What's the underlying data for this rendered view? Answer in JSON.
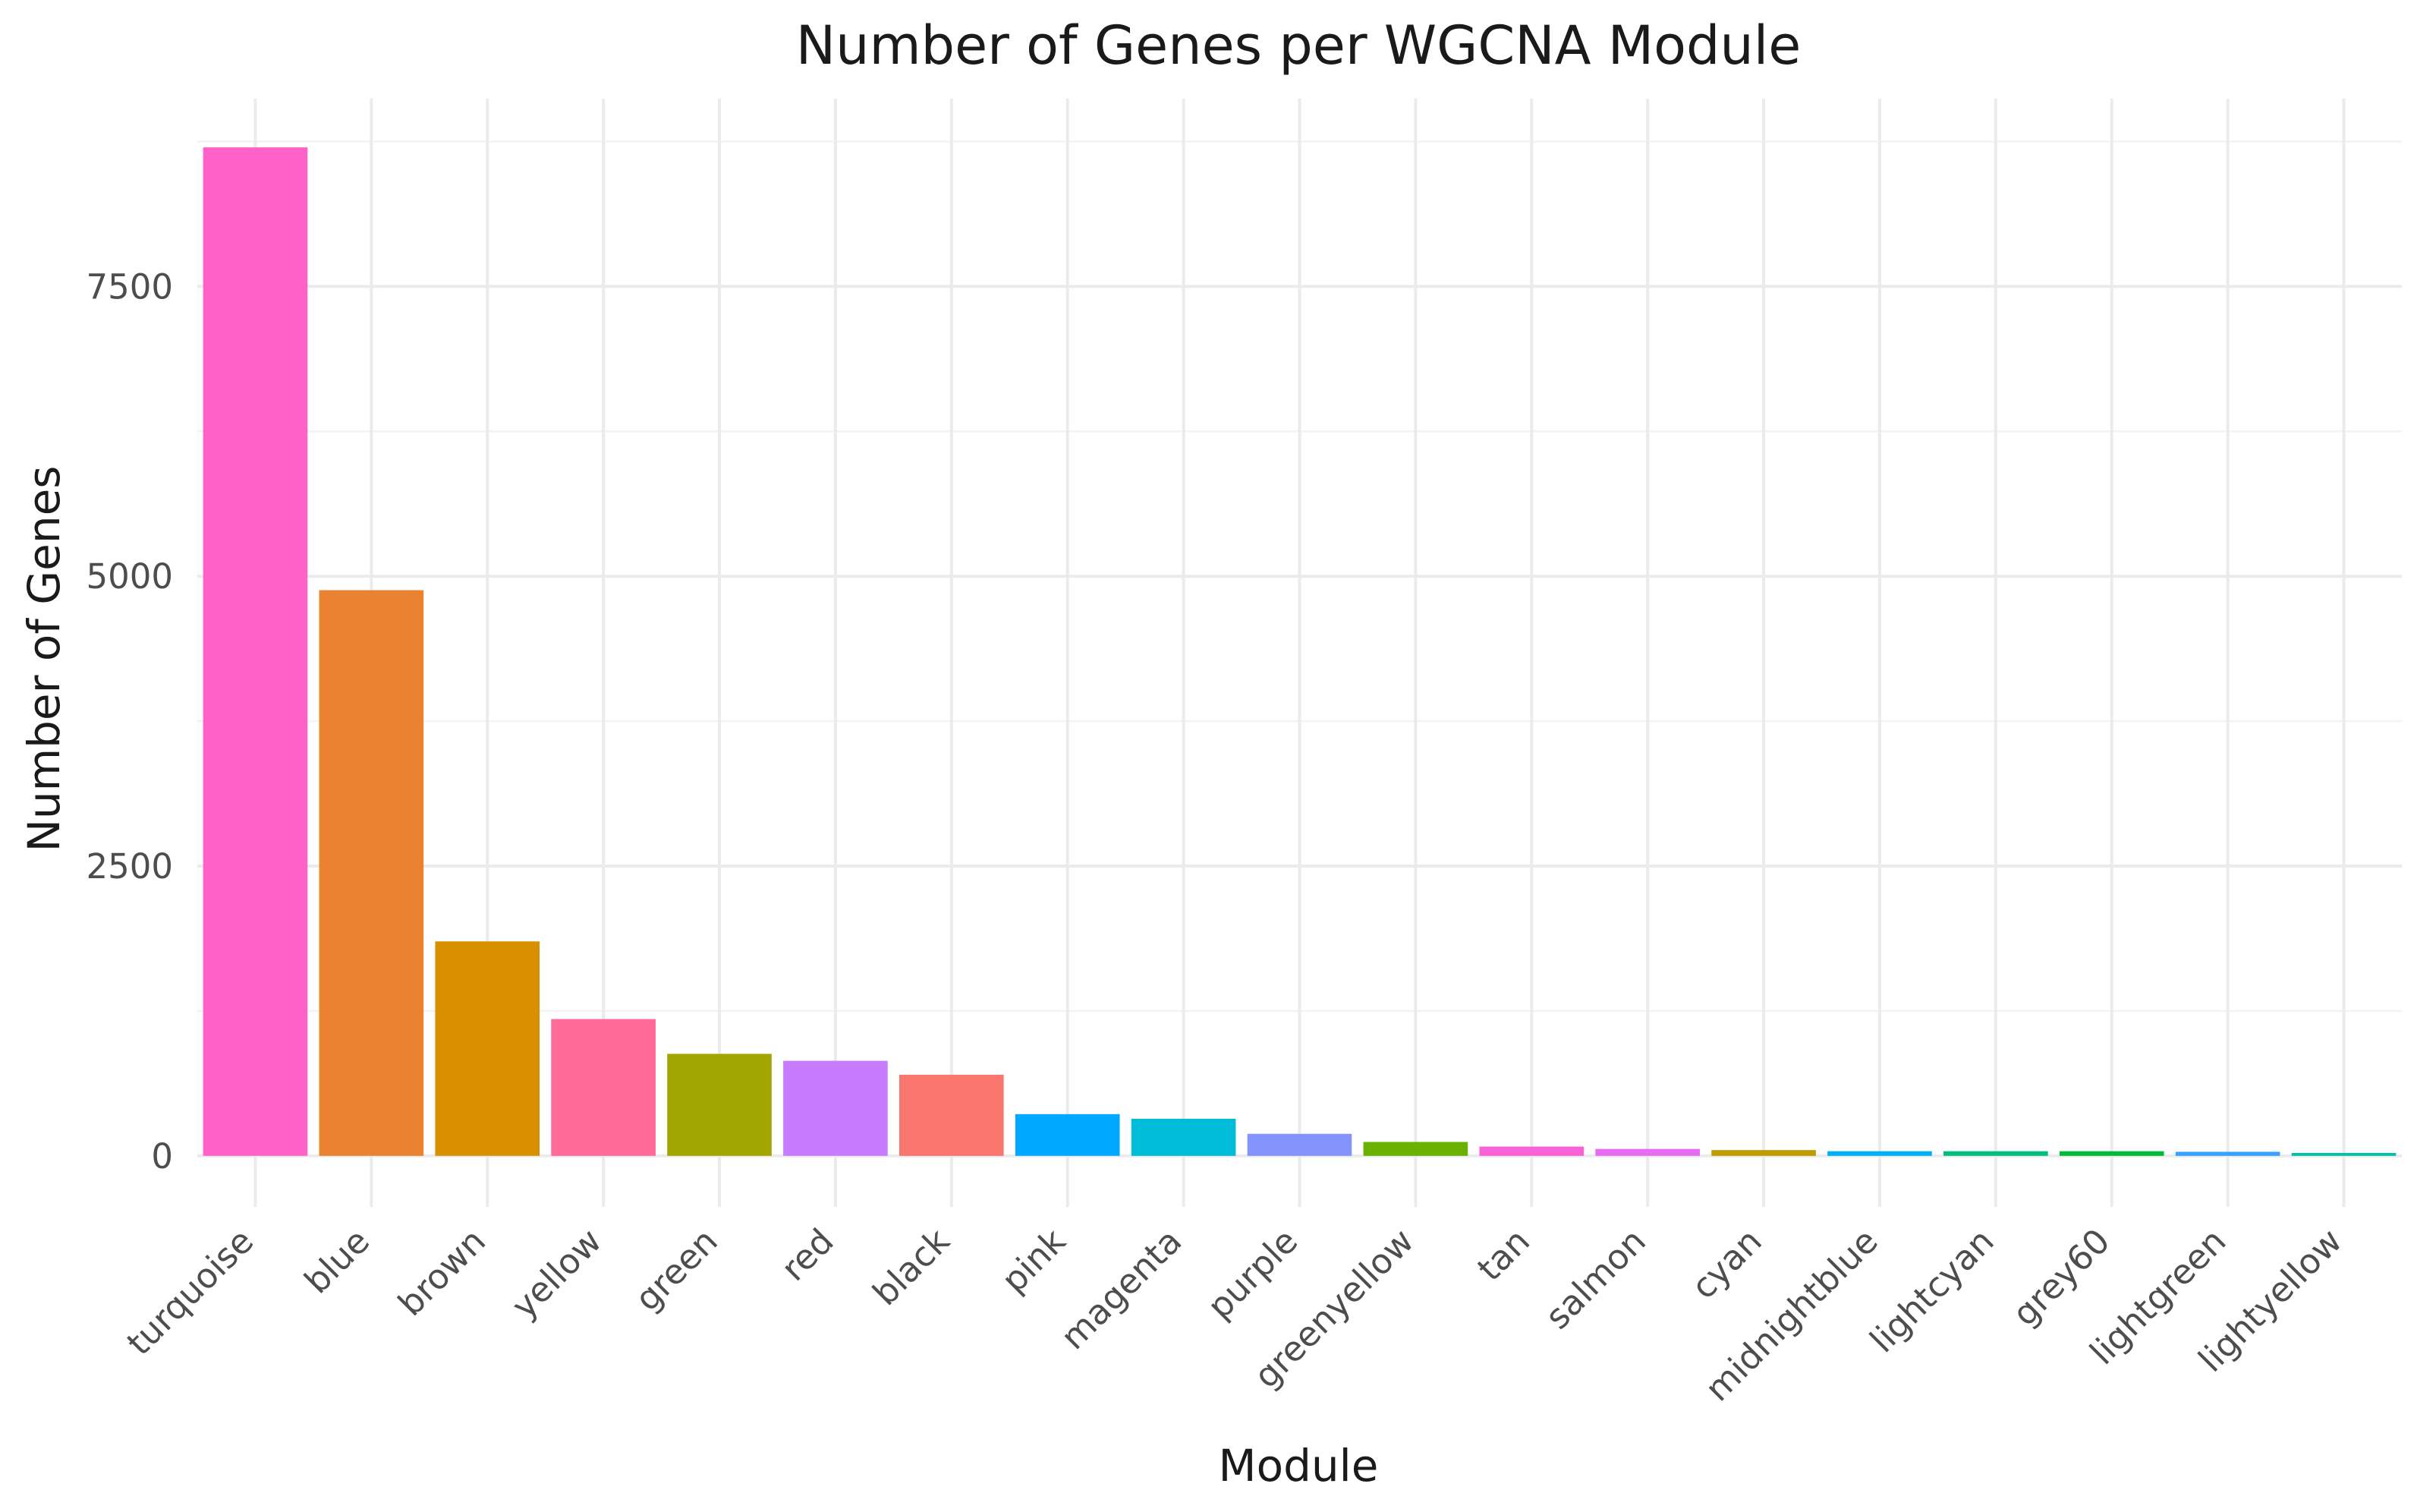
{
  "chart_data": {
    "type": "bar",
    "title": "Number of Genes per WGCNA Module",
    "xlabel": "Module",
    "ylabel": "Number of Genes",
    "ylim": [
      -440,
      9120
    ],
    "yticks": [
      0,
      2500,
      5000,
      7500
    ],
    "yticks_minor": [
      1250,
      3750,
      6250,
      8750
    ],
    "grid": true,
    "legend": "none",
    "categories": [
      "turquoise",
      "blue",
      "brown",
      "yellow",
      "green",
      "red",
      "black",
      "pink",
      "magenta",
      "purple",
      "greenyellow",
      "tan",
      "salmon",
      "cyan",
      "midnightblue",
      "lightcyan",
      "grey60",
      "lightgreen",
      "lightyellow"
    ],
    "values": [
      8700,
      4880,
      1850,
      1180,
      880,
      820,
      700,
      360,
      320,
      190,
      120,
      80,
      60,
      50,
      40,
      40,
      40,
      35,
      25
    ],
    "colors": [
      "#FF61C9",
      "#EA8331",
      "#D89000",
      "#FF6A98",
      "#A3A500",
      "#C77CFF",
      "#F8766D",
      "#00A9FF",
      "#00BCD8",
      "#8494FF",
      "#6BB100",
      "#FB61D7",
      "#E76BF3",
      "#C09B00",
      "#00B0F6",
      "#00BF7D",
      "#00BA38",
      "#35A2FF",
      "#00C1A3"
    ]
  }
}
